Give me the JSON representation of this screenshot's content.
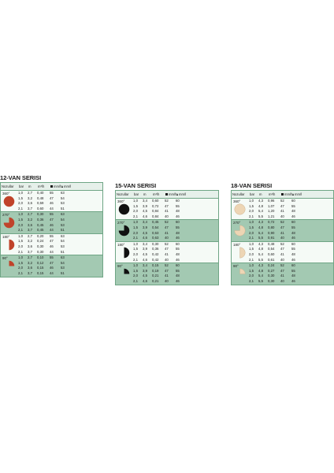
{
  "headers": {
    "nozzle": "Nozullar",
    "bar": "bar",
    "m": "m",
    "m3h": "m³/h",
    "mm_square": "mm/h",
    "mm_triangle": "mm/h"
  },
  "panels": [
    {
      "title": "12-VAN SERISI",
      "color": "#c0432a",
      "groups": [
        {
          "label": "360°",
          "arc": 360,
          "rows": [
            [
              "1,0",
              "2,7",
              "0,40",
              "55",
              "63"
            ],
            [
              "1,5",
              "3,2",
              "0,48",
              "47",
              "54"
            ],
            [
              "2,0",
              "3,6",
              "0,59",
              "46",
              "53"
            ],
            [
              "2,1",
              "3,7",
              "0,60",
              "44",
              "51"
            ]
          ]
        },
        {
          "label": "270°",
          "arc": 270,
          "rows": [
            [
              "1,0",
              "2,7",
              "0,30",
              "55",
              "63"
            ],
            [
              "1,5",
              "3,2",
              "0,36",
              "47",
              "54"
            ],
            [
              "2,0",
              "3,6",
              "0,45",
              "46",
              "53"
            ],
            [
              "2,1",
              "3,7",
              "0,45",
              "44",
              "51"
            ]
          ]
        },
        {
          "label": "180°",
          "arc": 180,
          "rows": [
            [
              "1,0",
              "2,7",
              "0,20",
              "55",
              "63"
            ],
            [
              "1,5",
              "3,2",
              "0,24",
              "47",
              "54"
            ],
            [
              "2,0",
              "3,6",
              "0,30",
              "46",
              "53"
            ],
            [
              "2,1",
              "3,7",
              "0,30",
              "44",
              "51"
            ]
          ]
        },
        {
          "label": "90°",
          "arc": 90,
          "rows": [
            [
              "1,0",
              "2,7",
              "0,10",
              "55",
              "63"
            ],
            [
              "1,5",
              "3,2",
              "0,12",
              "47",
              "54"
            ],
            [
              "2,0",
              "3,6",
              "0,15",
              "46",
              "53"
            ],
            [
              "2,1",
              "3,7",
              "0,15",
              "44",
              "51"
            ]
          ]
        }
      ]
    },
    {
      "title": "15-VAN SERISI",
      "color": "#111111",
      "groups": [
        {
          "label": "360°",
          "arc": 360,
          "rows": [
            [
              "1,0",
              "3,4",
              "0,60",
              "52",
              "60"
            ],
            [
              "1,5",
              "3,9",
              "0,72",
              "47",
              "55"
            ],
            [
              "2,0",
              "4,5",
              "0,84",
              "41",
              "48"
            ],
            [
              "2,1",
              "4,6",
              "0,84",
              "40",
              "46"
            ]
          ]
        },
        {
          "label": "270°",
          "arc": 270,
          "rows": [
            [
              "1,0",
              "3,4",
              "0,45",
              "52",
              "60"
            ],
            [
              "1,5",
              "3,9",
              "0,54",
              "47",
              "55"
            ],
            [
              "2,0",
              "4,5",
              "0,63",
              "41",
              "48"
            ],
            [
              "2,1",
              "4,6",
              "0,63",
              "40",
              "46"
            ]
          ]
        },
        {
          "label": "180°",
          "arc": 180,
          "rows": [
            [
              "1,0",
              "3,4",
              "0,30",
              "52",
              "60"
            ],
            [
              "1,5",
              "3,9",
              "0,36",
              "47",
              "55"
            ],
            [
              "2,0",
              "4,5",
              "0,42",
              "41",
              "48"
            ],
            [
              "2,1",
              "4,6",
              "0,42",
              "40",
              "46"
            ]
          ]
        },
        {
          "label": "90°",
          "arc": 90,
          "rows": [
            [
              "1,0",
              "3,4",
              "0,15",
              "52",
              "60"
            ],
            [
              "1,5",
              "3,9",
              "0,19",
              "47",
              "55"
            ],
            [
              "2,0",
              "4,5",
              "0,21",
              "41",
              "48"
            ],
            [
              "2,1",
              "4,6",
              "0,21",
              "40",
              "46"
            ]
          ]
        }
      ]
    },
    {
      "title": "18-VAN SERISI",
      "color": "#edd5b4",
      "groups": [
        {
          "label": "360°",
          "arc": 360,
          "rows": [
            [
              "1,0",
              "4,3",
              "0,96",
              "52",
              "60"
            ],
            [
              "1,5",
              "4,8",
              "1,07",
              "47",
              "55"
            ],
            [
              "2,0",
              "5,4",
              "1,20",
              "41",
              "48"
            ],
            [
              "2,1",
              "5,5",
              "1,21",
              "40",
              "46"
            ]
          ]
        },
        {
          "label": "270°",
          "arc": 270,
          "rows": [
            [
              "1,0",
              "4,3",
              "0,72",
              "52",
              "60"
            ],
            [
              "1,5",
              "4,8",
              "0,80",
              "47",
              "55"
            ],
            [
              "2,0",
              "5,4",
              "0,90",
              "41",
              "48"
            ],
            [
              "2,1",
              "5,5",
              "0,91",
              "40",
              "46"
            ]
          ]
        },
        {
          "label": "180°",
          "arc": 180,
          "rows": [
            [
              "1,0",
              "4,3",
              "0,48",
              "52",
              "60"
            ],
            [
              "1,5",
              "4,8",
              "0,54",
              "47",
              "55"
            ],
            [
              "2,0",
              "5,4",
              "0,60",
              "41",
              "48"
            ],
            [
              "2,1",
              "5,5",
              "0,61",
              "40",
              "46"
            ]
          ]
        },
        {
          "label": "90°",
          "arc": 90,
          "rows": [
            [
              "1,0",
              "4,3",
              "0,24",
              "52",
              "60"
            ],
            [
              "1,5",
              "4,8",
              "0,27",
              "47",
              "55"
            ],
            [
              "2,0",
              "5,4",
              "0,30",
              "41",
              "48"
            ],
            [
              "2,1",
              "5,5",
              "0,30",
              "40",
              "46"
            ]
          ]
        }
      ]
    }
  ]
}
